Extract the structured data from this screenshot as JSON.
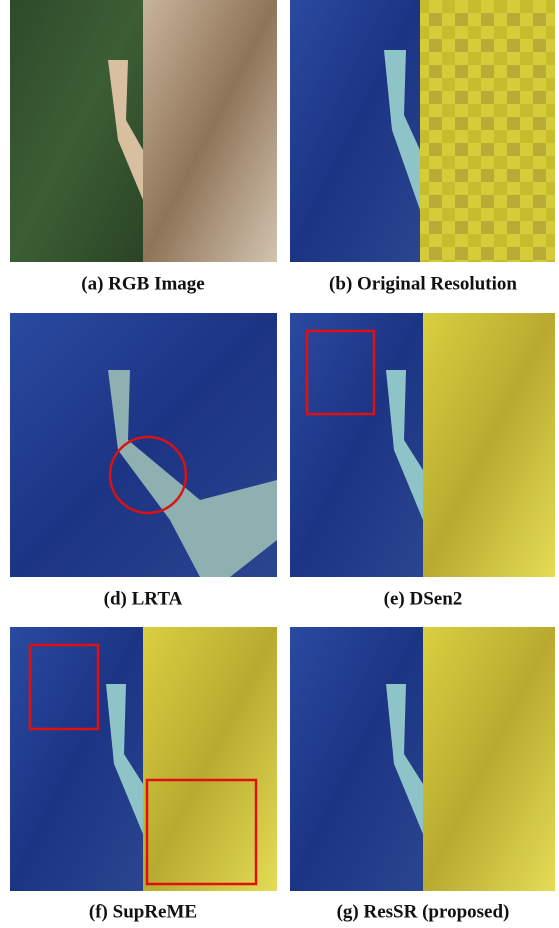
{
  "panels": [
    {
      "caption": "(a) RGB Image"
    },
    {
      "caption": "(b) Original Resolution"
    },
    {
      "caption": "(d) LRTA"
    },
    {
      "caption": "(e) DSen2"
    },
    {
      "caption": "(f) SupReME"
    },
    {
      "caption": "(g) ResSR (proposed)"
    }
  ]
}
